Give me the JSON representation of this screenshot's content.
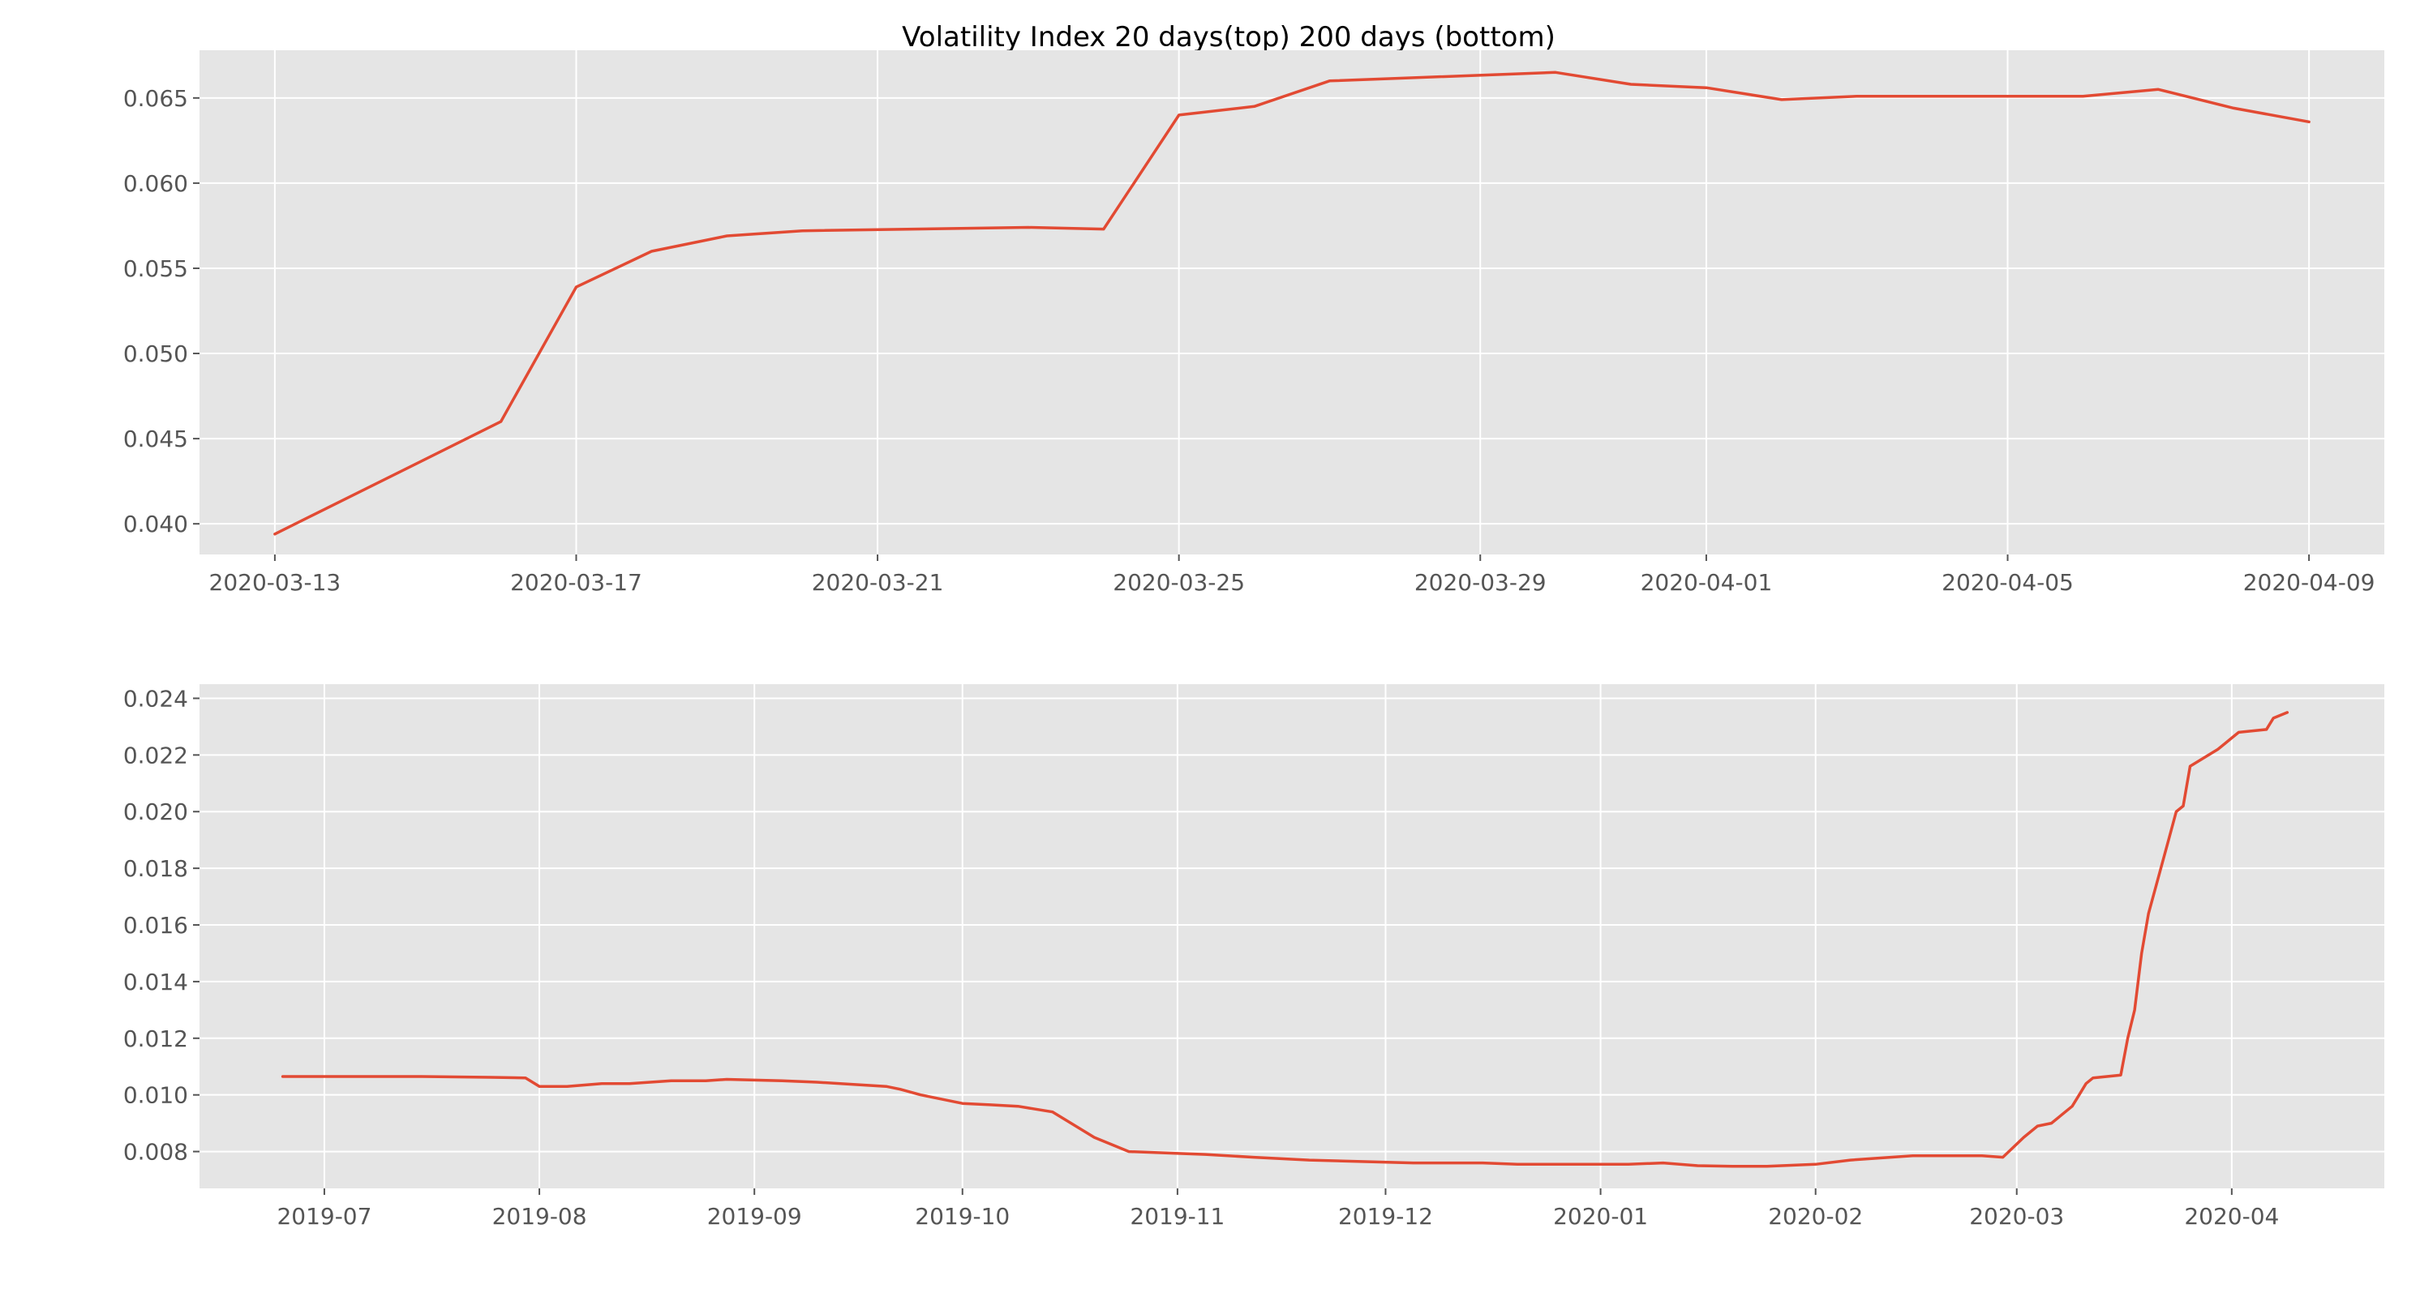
{
  "colors": {
    "series": "#e24a33",
    "panel_background": "#e5e5e5",
    "grid": "#ffffff"
  },
  "chart_data": [
    {
      "type": "line",
      "title": "Volatility Index 20 days(top) 200 days (bottom)",
      "xlabel": "",
      "ylabel": "",
      "x_type": "date",
      "grid": true,
      "xlim": [
        "2020-03-12",
        "2020-04-10"
      ],
      "ylim": [
        0.0382,
        0.0678
      ],
      "x_ticks": [
        "2020-03-13",
        "2020-03-17",
        "2020-03-21",
        "2020-03-25",
        "2020-03-29",
        "2020-04-01",
        "2020-04-05",
        "2020-04-09"
      ],
      "y_ticks": [
        "0.040",
        "0.045",
        "0.050",
        "0.055",
        "0.060",
        "0.065"
      ],
      "series": [
        {
          "x": [
            "2020-03-13",
            "2020-03-16",
            "2020-03-17",
            "2020-03-18",
            "2020-03-19",
            "2020-03-20",
            "2020-03-23",
            "2020-03-24",
            "2020-03-25",
            "2020-03-26",
            "2020-03-27",
            "2020-03-30",
            "2020-03-31",
            "2020-04-01",
            "2020-04-02",
            "2020-04-03",
            "2020-04-06",
            "2020-04-07",
            "2020-04-08",
            "2020-04-09"
          ],
          "y": [
            0.0394,
            0.046,
            0.0539,
            0.056,
            0.0569,
            0.0572,
            0.0574,
            0.0573,
            0.064,
            0.0645,
            0.066,
            0.0665,
            0.0658,
            0.0656,
            0.0649,
            0.0651,
            0.0651,
            0.0655,
            0.0644,
            0.0636
          ]
        }
      ]
    },
    {
      "type": "line",
      "title": "",
      "xlabel": "",
      "ylabel": "",
      "x_type": "date",
      "grid": true,
      "xlim": [
        "2019-06-13",
        "2020-04-23"
      ],
      "ylim": [
        0.0067,
        0.0245
      ],
      "x_ticks": [
        "2019-07",
        "2019-08",
        "2019-09",
        "2019-10",
        "2019-11",
        "2019-12",
        "2020-01",
        "2020-02",
        "2020-03",
        "2020-04"
      ],
      "y_ticks": [
        "0.008",
        "0.010",
        "0.012",
        "0.014",
        "0.016",
        "0.018",
        "0.020",
        "0.022",
        "0.024"
      ],
      "series": [
        {
          "x": [
            "2019-06-25",
            "2019-07-05",
            "2019-07-15",
            "2019-07-25",
            "2019-07-30",
            "2019-08-01",
            "2019-08-05",
            "2019-08-10",
            "2019-08-12",
            "2019-08-14",
            "2019-08-20",
            "2019-08-25",
            "2019-08-28",
            "2019-09-05",
            "2019-09-10",
            "2019-09-20",
            "2019-09-22",
            "2019-09-25",
            "2019-10-01",
            "2019-10-05",
            "2019-10-09",
            "2019-10-14",
            "2019-10-20",
            "2019-10-25",
            "2019-11-05",
            "2019-11-12",
            "2019-11-20",
            "2019-12-05",
            "2019-12-15",
            "2019-12-20",
            "2020-01-05",
            "2020-01-10",
            "2020-01-15",
            "2020-01-20",
            "2020-01-25",
            "2020-02-01",
            "2020-02-06",
            "2020-02-15",
            "2020-02-25",
            "2020-02-28",
            "2020-03-02",
            "2020-03-04",
            "2020-03-06",
            "2020-03-09",
            "2020-03-10",
            "2020-03-11",
            "2020-03-12",
            "2020-03-16",
            "2020-03-17",
            "2020-03-18",
            "2020-03-19",
            "2020-03-20",
            "2020-03-23",
            "2020-03-24",
            "2020-03-25",
            "2020-03-26",
            "2020-03-30",
            "2020-03-31",
            "2020-04-01",
            "2020-04-02",
            "2020-04-06",
            "2020-04-07",
            "2020-04-08",
            "2020-04-09"
          ],
          "y": [
            0.01065,
            0.01065,
            0.01065,
            0.01062,
            0.0106,
            0.0103,
            0.0103,
            0.0104,
            0.0104,
            0.0104,
            0.0105,
            0.0105,
            0.01055,
            0.0105,
            0.01045,
            0.0103,
            0.0102,
            0.01,
            0.0097,
            0.00965,
            0.0096,
            0.0094,
            0.0085,
            0.008,
            0.0079,
            0.0078,
            0.0077,
            0.0076,
            0.0076,
            0.00755,
            0.00755,
            0.0076,
            0.0075,
            0.00748,
            0.00748,
            0.00755,
            0.0077,
            0.00785,
            0.00785,
            0.0078,
            0.0085,
            0.0089,
            0.009,
            0.0096,
            0.01,
            0.0104,
            0.0106,
            0.0107,
            0.012,
            0.013,
            0.015,
            0.0164,
            0.0191,
            0.02,
            0.0202,
            0.0216,
            0.0222,
            0.0224,
            0.0226,
            0.0228,
            0.0229,
            0.0233,
            0.0234,
            0.0235
          ]
        }
      ]
    }
  ]
}
